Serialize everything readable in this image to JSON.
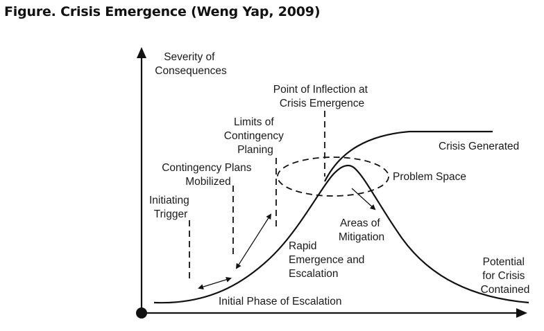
{
  "figure": {
    "title": "Figure. Crisis Emergence (Weng Yap, 2009)"
  },
  "labels": {
    "y_axis": [
      "Severity of",
      "Consequences"
    ],
    "point_of_inflection": [
      "Point of Inflection at",
      "Crisis Emergence"
    ],
    "limits_contingency": [
      "Limits of",
      "Contingency",
      "Planing"
    ],
    "contingency_plans": [
      "Contingency Plans",
      "Mobilized"
    ],
    "initiating_trigger": [
      "Initiating",
      "Trigger"
    ],
    "crisis_generated": "Crisis Generated",
    "problem_space": "Problem Space",
    "areas_mitigation": [
      "Areas of",
      "Mitigation"
    ],
    "rapid_emergence": [
      "Rapid",
      "Emergence and",
      "Escalation"
    ],
    "potential_crisis": [
      "Potential",
      "for Crisis",
      "Contained"
    ],
    "initial_phase": "Initial Phase of Escalation"
  },
  "colors": {
    "ink": "#111111",
    "background": "#ffffff"
  }
}
